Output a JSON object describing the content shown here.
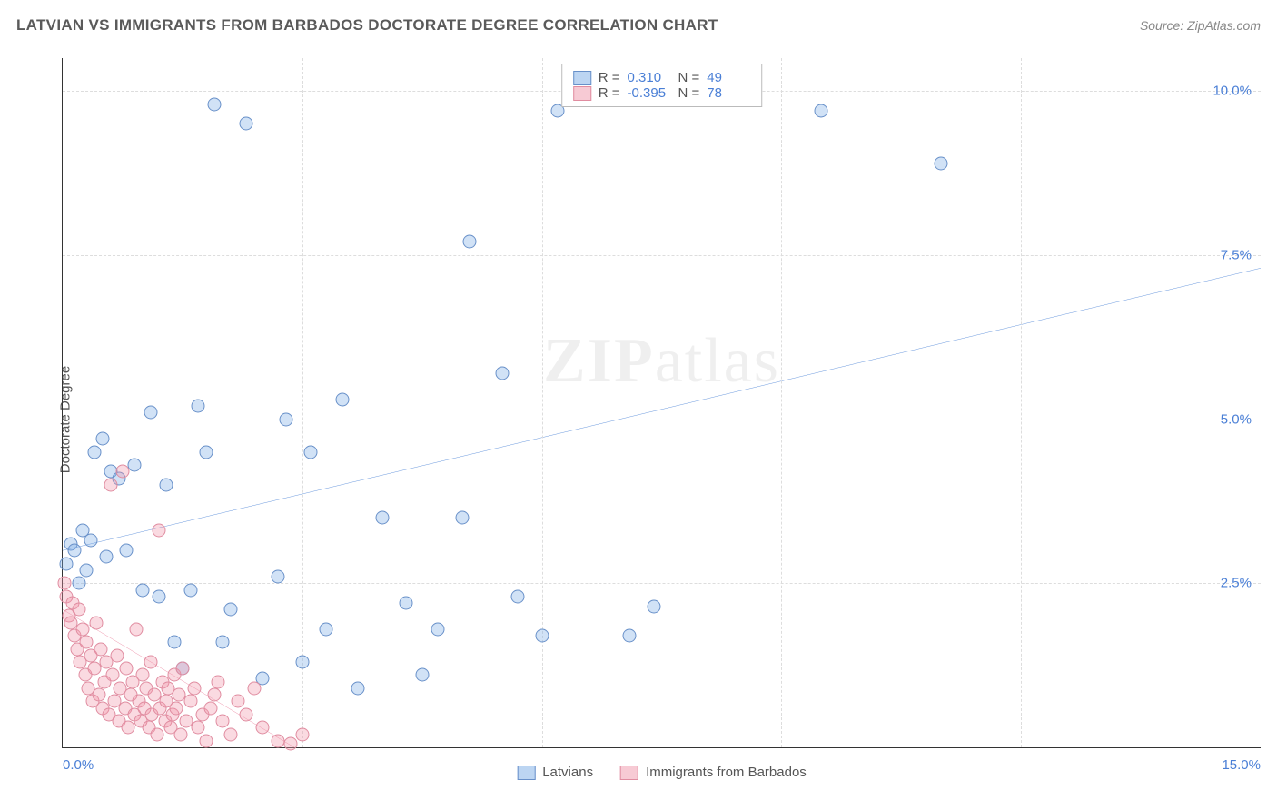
{
  "title": "LATVIAN VS IMMIGRANTS FROM BARBADOS DOCTORATE DEGREE CORRELATION CHART",
  "source": "Source: ZipAtlas.com",
  "y_axis_label": "Doctorate Degree",
  "watermark": {
    "bold": "ZIP",
    "rest": "atlas"
  },
  "chart": {
    "type": "scatter",
    "xlim": [
      0,
      15
    ],
    "ylim": [
      0,
      10.5
    ],
    "x_ticks": [
      0,
      3,
      6,
      9,
      12,
      15
    ],
    "y_ticks": [
      2.5,
      5.0,
      7.5,
      10.0
    ],
    "x_tick_labels": [
      "0.0%",
      "",
      "",
      "",
      "",
      "15.0%"
    ],
    "y_tick_labels": [
      "2.5%",
      "5.0%",
      "7.5%",
      "10.0%"
    ],
    "grid_color": "#dddddd",
    "background_color": "#ffffff",
    "axis_color": "#333333",
    "tick_label_color": "#4a7fd6",
    "marker_radius": 7.5,
    "series": [
      {
        "name": "Latvians",
        "color_fill": "rgba(122,172,230,0.35)",
        "color_stroke": "#6890c9",
        "trend_color": "#2f6fd0",
        "trend_width": 2,
        "R": "0.310",
        "N": "49",
        "trend": {
          "x1": 0,
          "y1": 3.0,
          "x2": 15,
          "y2": 7.3
        },
        "points": [
          [
            0.05,
            2.8
          ],
          [
            0.1,
            3.1
          ],
          [
            0.15,
            3.0
          ],
          [
            0.2,
            2.5
          ],
          [
            0.25,
            3.3
          ],
          [
            0.3,
            2.7
          ],
          [
            0.4,
            4.5
          ],
          [
            0.5,
            4.7
          ],
          [
            0.6,
            4.2
          ],
          [
            0.7,
            4.1
          ],
          [
            0.8,
            3.0
          ],
          [
            0.9,
            4.3
          ],
          [
            1.0,
            2.4
          ],
          [
            1.1,
            5.1
          ],
          [
            1.2,
            2.3
          ],
          [
            1.3,
            4.0
          ],
          [
            1.4,
            1.6
          ],
          [
            1.5,
            1.2
          ],
          [
            1.6,
            2.4
          ],
          [
            1.7,
            5.2
          ],
          [
            1.8,
            4.5
          ],
          [
            1.9,
            9.8
          ],
          [
            2.0,
            1.6
          ],
          [
            2.1,
            2.1
          ],
          [
            2.3,
            9.5
          ],
          [
            2.5,
            1.05
          ],
          [
            2.7,
            2.6
          ],
          [
            2.8,
            5.0
          ],
          [
            3.0,
            1.3
          ],
          [
            3.1,
            4.5
          ],
          [
            3.3,
            1.8
          ],
          [
            3.5,
            5.3
          ],
          [
            3.7,
            0.9
          ],
          [
            4.0,
            3.5
          ],
          [
            4.3,
            2.2
          ],
          [
            4.5,
            1.1
          ],
          [
            4.7,
            1.8
          ],
          [
            5.0,
            3.5
          ],
          [
            5.1,
            7.7
          ],
          [
            5.5,
            5.7
          ],
          [
            5.7,
            2.3
          ],
          [
            6.0,
            1.7
          ],
          [
            6.2,
            9.7
          ],
          [
            7.1,
            1.7
          ],
          [
            7.4,
            2.15
          ],
          [
            9.5,
            9.7
          ],
          [
            11.0,
            8.9
          ],
          [
            0.35,
            3.15
          ],
          [
            0.55,
            2.9
          ]
        ]
      },
      {
        "name": "Immigrants from Barbados",
        "color_fill": "rgba(240,150,170,0.35)",
        "color_stroke": "#e08ca0",
        "trend_color": "#e86a8a",
        "trend_width": 2,
        "R": "-0.395",
        "N": "78",
        "trend": {
          "x1": 0,
          "y1": 2.1,
          "x2": 2.9,
          "y2": 0
        },
        "points": [
          [
            0.02,
            2.5
          ],
          [
            0.05,
            2.3
          ],
          [
            0.08,
            2.0
          ],
          [
            0.1,
            1.9
          ],
          [
            0.12,
            2.2
          ],
          [
            0.15,
            1.7
          ],
          [
            0.18,
            1.5
          ],
          [
            0.2,
            2.1
          ],
          [
            0.22,
            1.3
          ],
          [
            0.25,
            1.8
          ],
          [
            0.28,
            1.1
          ],
          [
            0.3,
            1.6
          ],
          [
            0.32,
            0.9
          ],
          [
            0.35,
            1.4
          ],
          [
            0.38,
            0.7
          ],
          [
            0.4,
            1.2
          ],
          [
            0.42,
            1.9
          ],
          [
            0.45,
            0.8
          ],
          [
            0.48,
            1.5
          ],
          [
            0.5,
            0.6
          ],
          [
            0.52,
            1.0
          ],
          [
            0.55,
            1.3
          ],
          [
            0.58,
            0.5
          ],
          [
            0.6,
            4.0
          ],
          [
            0.62,
            1.1
          ],
          [
            0.65,
            0.7
          ],
          [
            0.68,
            1.4
          ],
          [
            0.7,
            0.4
          ],
          [
            0.72,
            0.9
          ],
          [
            0.75,
            4.2
          ],
          [
            0.78,
            0.6
          ],
          [
            0.8,
            1.2
          ],
          [
            0.82,
            0.3
          ],
          [
            0.85,
            0.8
          ],
          [
            0.88,
            1.0
          ],
          [
            0.9,
            0.5
          ],
          [
            0.92,
            1.8
          ],
          [
            0.95,
            0.7
          ],
          [
            0.98,
            0.4
          ],
          [
            1.0,
            1.1
          ],
          [
            1.02,
            0.6
          ],
          [
            1.05,
            0.9
          ],
          [
            1.08,
            0.3
          ],
          [
            1.1,
            1.3
          ],
          [
            1.12,
            0.5
          ],
          [
            1.15,
            0.8
          ],
          [
            1.18,
            0.2
          ],
          [
            1.2,
            3.3
          ],
          [
            1.22,
            0.6
          ],
          [
            1.25,
            1.0
          ],
          [
            1.28,
            0.4
          ],
          [
            1.3,
            0.7
          ],
          [
            1.32,
            0.9
          ],
          [
            1.35,
            0.3
          ],
          [
            1.38,
            0.5
          ],
          [
            1.4,
            1.1
          ],
          [
            1.42,
            0.6
          ],
          [
            1.45,
            0.8
          ],
          [
            1.48,
            0.2
          ],
          [
            1.5,
            1.2
          ],
          [
            1.55,
            0.4
          ],
          [
            1.6,
            0.7
          ],
          [
            1.65,
            0.9
          ],
          [
            1.7,
            0.3
          ],
          [
            1.75,
            0.5
          ],
          [
            1.8,
            0.1
          ],
          [
            1.85,
            0.6
          ],
          [
            1.9,
            0.8
          ],
          [
            1.95,
            1.0
          ],
          [
            2.0,
            0.4
          ],
          [
            2.1,
            0.2
          ],
          [
            2.2,
            0.7
          ],
          [
            2.3,
            0.5
          ],
          [
            2.4,
            0.9
          ],
          [
            2.5,
            0.3
          ],
          [
            2.7,
            0.1
          ],
          [
            2.85,
            0.05
          ],
          [
            3.0,
            0.2
          ]
        ]
      }
    ]
  },
  "legend_top": {
    "r_label": "R =",
    "n_label": "N ="
  },
  "legend_bottom": {
    "items": [
      "Latvians",
      "Immigrants from Barbados"
    ]
  }
}
